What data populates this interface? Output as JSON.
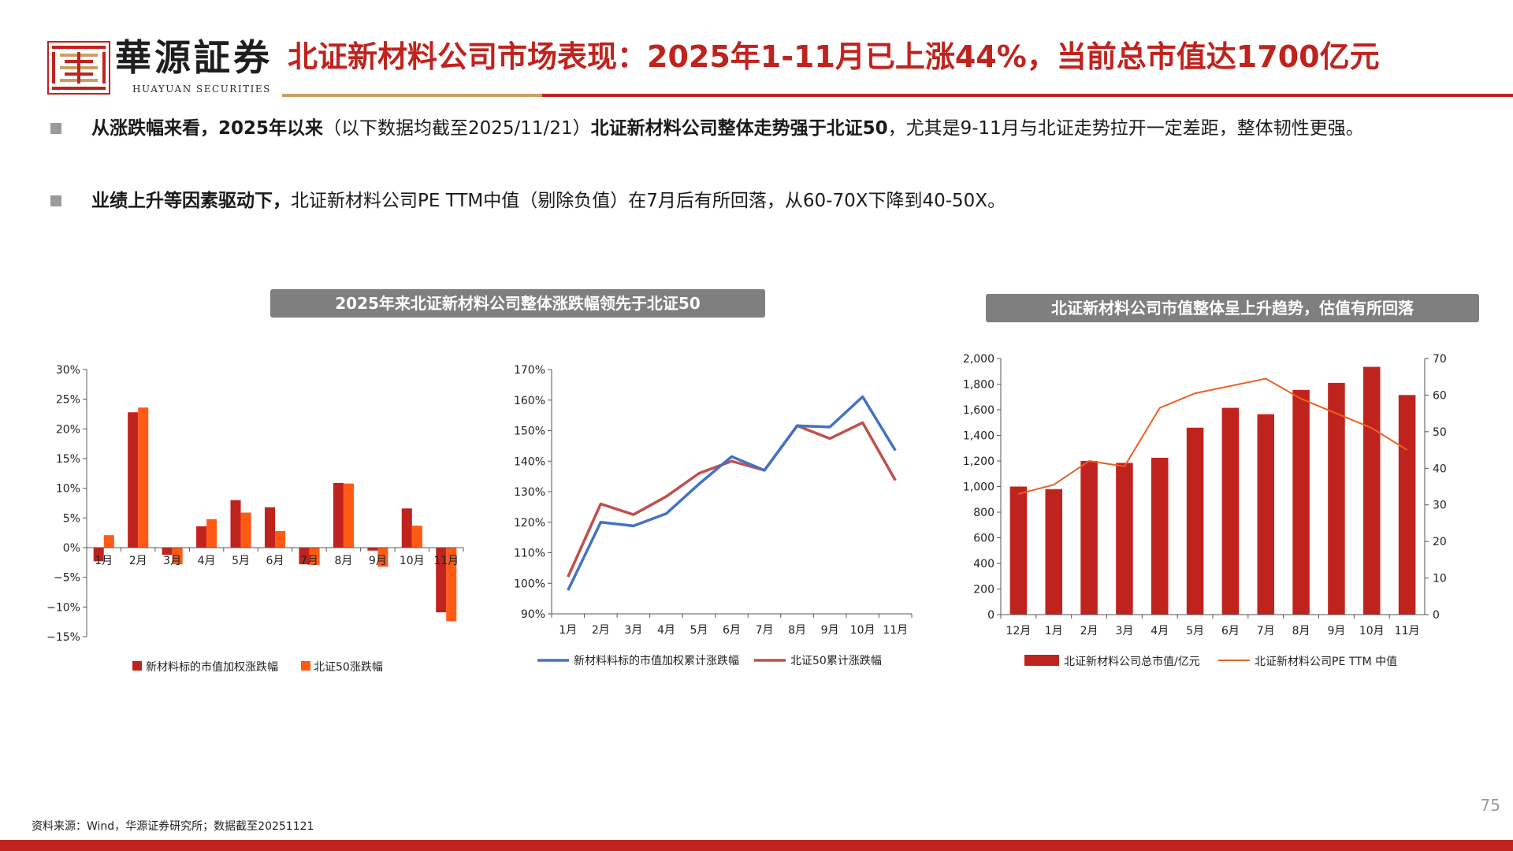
{
  "header": {
    "logo_name": "華源証券",
    "logo_sub": "HUAYUAN SECURITIES",
    "title": "北证新材料公司市场表现：2025年1-11月已上涨44%，当前总市值达1700亿元"
  },
  "bullets": [
    {
      "bold": "从涨跌幅来看，2025年以来",
      "normal1": "（以下数据均截至2025/11/21）",
      "bold2": "北证新材料公司整体走势强于北证50",
      "normal2": "，尤其是9-11月与北证走势拉开一定差距，整体韧性更强。"
    },
    {
      "bold": "业绩上升等因素驱动下，",
      "normal1": "北证新材料公司PE TTM中值（剔除负值）在7月后有所回落，从60-70X下降到40-50X。",
      "bold2": "",
      "normal2": ""
    }
  ],
  "colors": {
    "primary_red": "#c0231e",
    "bar_dark_red": "#c0231e",
    "bar_orange": "#ff5a14",
    "line_blue": "#4472c4",
    "line_red": "#c0504d",
    "line_orange": "#ed5f22",
    "gold": "#c9a062",
    "pill_gray": "#7f7f7f"
  },
  "chart_headers": {
    "left": "2025年来北证新材料公司整体涨跌幅领先于北证50",
    "right": "北证新材料公司市值整体呈上升趋势，估值有所回落"
  },
  "chart_data": [
    {
      "type": "bar",
      "categories": [
        "1月",
        "2月",
        "3月",
        "4月",
        "5月",
        "6月",
        "7月",
        "8月",
        "9月",
        "10月",
        "11月"
      ],
      "series": [
        {
          "name": "新材料标的市值加权涨跌幅",
          "values": [
            -2.3,
            22.8,
            -1.2,
            3.6,
            8.0,
            6.8,
            -2.8,
            10.9,
            -0.5,
            6.6,
            -10.9
          ]
        },
        {
          "name": "北证50涨跌幅",
          "values": [
            2.1,
            23.6,
            -2.8,
            4.8,
            5.9,
            2.8,
            -2.9,
            10.8,
            -3.2,
            3.7,
            -12.4
          ]
        }
      ],
      "yticks": [
        30,
        25,
        20,
        15,
        10,
        5,
        0,
        -5,
        -10,
        -15
      ],
      "ytick_labels": [
        "30%",
        "25%",
        "20%",
        "15%",
        "10%",
        "5%",
        "0%",
        "−5%",
        "−10%",
        "−15%"
      ],
      "ylim": [
        -15,
        30
      ],
      "legend_position": "bottom"
    },
    {
      "type": "line",
      "categories": [
        "1月",
        "2月",
        "3月",
        "4月",
        "5月",
        "6月",
        "7月",
        "8月",
        "9月",
        "10月",
        "11月"
      ],
      "series": [
        {
          "name": "新材料料标的市值加权累计涨跌幅",
          "values": [
            97.7,
            120.0,
            118.8,
            122.8,
            132.5,
            141.5,
            137.0,
            151.6,
            151.2,
            161.1,
            143.5
          ]
        },
        {
          "name": "北证50累计涨跌幅",
          "values": [
            102.1,
            126.0,
            122.5,
            128.4,
            136.0,
            140.0,
            137.0,
            151.6,
            147.4,
            152.6,
            133.7
          ]
        }
      ],
      "yticks": [
        170,
        160,
        150,
        140,
        130,
        120,
        110,
        100,
        90
      ],
      "ytick_labels": [
        "170%",
        "160%",
        "150%",
        "140%",
        "130%",
        "120%",
        "110%",
        "100%",
        "90%"
      ],
      "ylim": [
        90,
        170
      ],
      "legend_position": "bottom"
    },
    {
      "type": "bar",
      "categories": [
        "12月",
        "1月",
        "2月",
        "3月",
        "4月",
        "5月",
        "6月",
        "7月",
        "8月",
        "9月",
        "10月",
        "11月"
      ],
      "series": [
        {
          "name": "北证新材料公司总市值/亿元",
          "axis": "left",
          "chart_type": "bar",
          "values": [
            1000,
            980,
            1200,
            1185,
            1225,
            1460,
            1615,
            1565,
            1755,
            1810,
            1935,
            1715
          ]
        },
        {
          "name": "北证新材料公司PE TTM 中值",
          "axis": "right",
          "chart_type": "line",
          "values": [
            33,
            35.5,
            42,
            40.5,
            56.5,
            60.5,
            62.5,
            64.5,
            59,
            55,
            51,
            45
          ]
        }
      ],
      "yticks_left": [
        2000,
        1800,
        1600,
        1400,
        1200,
        1000,
        800,
        600,
        400,
        200,
        0
      ],
      "ytick_labels_left": [
        "2,000",
        "1,800",
        "1,600",
        "1,400",
        "1,200",
        "1,000",
        "800",
        "600",
        "400",
        "200",
        "0"
      ],
      "ylim_left": [
        0,
        2000
      ],
      "yticks_right": [
        70,
        60,
        50,
        40,
        30,
        20,
        10,
        0
      ],
      "ytick_labels_right": [
        "70",
        "60",
        "50",
        "40",
        "30",
        "20",
        "10",
        "0"
      ],
      "ylim_right": [
        0,
        70
      ],
      "legend_position": "bottom"
    }
  ],
  "footer": {
    "source": "资料来源：Wind，华源证券研究所；数据截至20251121",
    "page_number": "75"
  }
}
